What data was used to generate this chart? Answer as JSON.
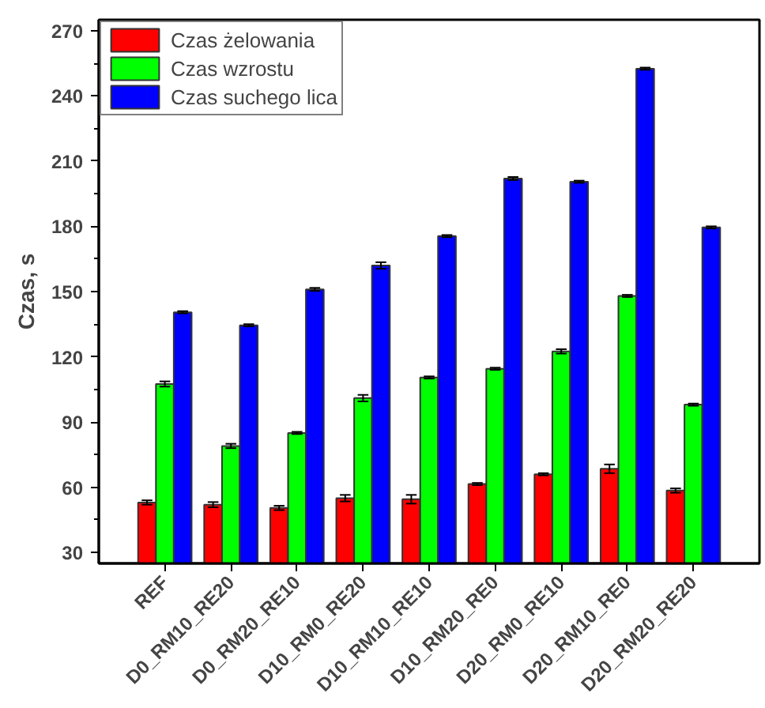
{
  "chart_data": {
    "type": "bar",
    "ylabel": "Czas, s",
    "categories": [
      "REF",
      "D0_RM10_RE20",
      "D0_RM20_RE10",
      "D10_RM0_RE20",
      "D10_RM10_RE10",
      "D10_RM20_RE0",
      "D20_RM0_RE10",
      "D20_RM10_RE0",
      "D20_RM20_RE20"
    ],
    "series": [
      {
        "name": "Czas żelowania",
        "color": "#ff0000",
        "values": [
          53,
          52,
          50.5,
          55,
          54.5,
          61.5,
          66,
          68.5,
          58.5
        ],
        "errors": [
          1,
          1.2,
          1,
          1.5,
          2,
          0.5,
          0.5,
          2,
          1
        ]
      },
      {
        "name": "Czas wzrostu",
        "color": "#00ff00",
        "values": [
          107.5,
          79,
          85,
          101,
          110.5,
          114.5,
          122.5,
          148,
          98
        ],
        "errors": [
          1.2,
          1,
          0.5,
          1.5,
          0.5,
          0.5,
          1,
          0.5,
          0.5
        ]
      },
      {
        "name": "Czas suchego lica",
        "color": "#0000ff",
        "values": [
          140.5,
          134.5,
          151,
          162,
          175.5,
          202,
          200.5,
          252.5,
          179.5
        ],
        "errors": [
          0.5,
          0.5,
          0.7,
          1.5,
          0.5,
          0.7,
          0.5,
          0.5,
          0.5
        ]
      }
    ],
    "ylim": [
      25,
      275
    ],
    "yticks": [
      30,
      60,
      90,
      120,
      150,
      180,
      210,
      240,
      270
    ],
    "grid": false,
    "legend": "top left"
  }
}
